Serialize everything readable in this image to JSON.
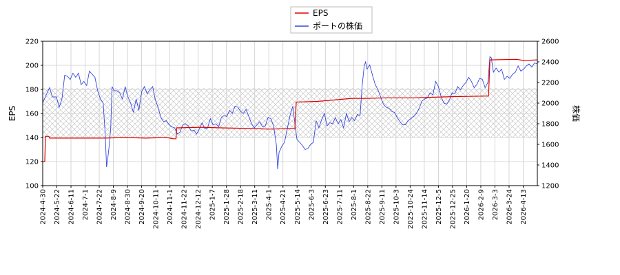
{
  "chart_data": {
    "type": "line",
    "legend": {
      "placement": "top-center",
      "entries": [
        "EPS",
        "ポートの株価"
      ]
    },
    "xlabel": "",
    "ylabel_left": "EPS",
    "ylabel_right": "株価",
    "x_ticks": [
      "2024-4-30",
      "2024-5-22",
      "2024-6-11",
      "2024-7-1",
      "2024-7-22",
      "2024-8-9",
      "2024-8-30",
      "2024-9-20",
      "2024-10-11",
      "2024-11-1",
      "2024-11-22",
      "2024-12-12",
      "2025-1-7",
      "2025-1-28",
      "2025-2-18",
      "2025-3-11",
      "2025-4-1",
      "2025-4-21",
      "2025-5-14",
      "2025-6-3",
      "2025-6-23",
      "2025-7-11",
      "2025-8-1",
      "2025-8-22",
      "2025-9-11",
      "2025-10-3",
      "2025-10-24",
      "2025-11-14",
      "2025-12-5",
      "2025-12-25",
      "2026-1-20",
      "2026-2-9",
      "2026-3-3",
      "2026-3-24",
      "2026-4-13"
    ],
    "y_left": {
      "min": 100,
      "max": 220,
      "ticks": [
        100,
        120,
        140,
        160,
        180,
        200,
        220
      ]
    },
    "y_right": {
      "min": 1200,
      "max": 2600,
      "ticks": [
        1200,
        1400,
        1600,
        1800,
        2000,
        2200,
        2400,
        2600
      ]
    },
    "grid": true,
    "hatched_band": {
      "axis": "left",
      "from": 140,
      "to": 181
    },
    "colors": {
      "eps": "#dd0000",
      "price": "#3344dd",
      "grid": "#cccccc",
      "hatch": "#bbbbbb"
    },
    "series": [
      {
        "name": "EPS",
        "axis": "left",
        "points": [
          [
            0,
            120
          ],
          [
            3,
            120
          ],
          [
            4,
            141
          ],
          [
            9,
            141
          ],
          [
            10,
            139.5
          ],
          [
            90,
            139.5
          ],
          [
            120,
            140
          ],
          [
            150,
            139.5
          ],
          [
            180,
            140
          ],
          [
            190,
            139
          ],
          [
            194,
            139
          ],
          [
            195,
            148
          ],
          [
            230,
            148.5
          ],
          [
            260,
            148
          ],
          [
            300,
            147.5
          ],
          [
            330,
            147
          ],
          [
            367,
            147.5
          ],
          [
            369,
            169.5
          ],
          [
            400,
            170
          ],
          [
            430,
            171.5
          ],
          [
            450,
            172.5
          ],
          [
            470,
            172.5
          ],
          [
            500,
            173
          ],
          [
            540,
            173
          ],
          [
            570,
            173.5
          ],
          [
            600,
            174
          ],
          [
            620,
            174.2
          ],
          [
            649,
            174.5
          ],
          [
            651,
            204.5
          ],
          [
            690,
            205
          ],
          [
            700,
            204
          ],
          [
            720,
            204.5
          ]
        ]
      },
      {
        "name": "ポートの株価",
        "axis": "right",
        "points": [
          [
            0,
            2000
          ],
          [
            5,
            2080
          ],
          [
            10,
            2150
          ],
          [
            14,
            2060
          ],
          [
            20,
            2060
          ],
          [
            24,
            1960
          ],
          [
            28,
            2040
          ],
          [
            32,
            2270
          ],
          [
            36,
            2260
          ],
          [
            40,
            2230
          ],
          [
            44,
            2290
          ],
          [
            48,
            2250
          ],
          [
            52,
            2290
          ],
          [
            56,
            2180
          ],
          [
            60,
            2210
          ],
          [
            64,
            2170
          ],
          [
            68,
            2310
          ],
          [
            72,
            2280
          ],
          [
            76,
            2250
          ],
          [
            80,
            2120
          ],
          [
            84,
            2040
          ],
          [
            88,
            2000
          ],
          [
            91,
            1700
          ],
          [
            93,
            1380
          ],
          [
            95,
            1480
          ],
          [
            97,
            1600
          ],
          [
            99,
            1760
          ],
          [
            101,
            2160
          ],
          [
            104,
            2120
          ],
          [
            108,
            2120
          ],
          [
            112,
            2100
          ],
          [
            116,
            2040
          ],
          [
            120,
            2160
          ],
          [
            124,
            2060
          ],
          [
            128,
            2000
          ],
          [
            132,
            1910
          ],
          [
            136,
            2040
          ],
          [
            140,
            1930
          ],
          [
            144,
            2110
          ],
          [
            148,
            2160
          ],
          [
            152,
            2090
          ],
          [
            156,
            2130
          ],
          [
            160,
            2160
          ],
          [
            164,
            2030
          ],
          [
            168,
            1960
          ],
          [
            172,
            1860
          ],
          [
            176,
            1820
          ],
          [
            180,
            1830
          ],
          [
            184,
            1790
          ],
          [
            188,
            1770
          ],
          [
            192,
            1760
          ],
          [
            196,
            1700
          ],
          [
            200,
            1720
          ],
          [
            204,
            1790
          ],
          [
            208,
            1800
          ],
          [
            212,
            1780
          ],
          [
            216,
            1730
          ],
          [
            220,
            1740
          ],
          [
            224,
            1700
          ],
          [
            228,
            1750
          ],
          [
            232,
            1810
          ],
          [
            236,
            1750
          ],
          [
            240,
            1760
          ],
          [
            244,
            1850
          ],
          [
            248,
            1790
          ],
          [
            252,
            1800
          ],
          [
            256,
            1770
          ],
          [
            260,
            1860
          ],
          [
            264,
            1880
          ],
          [
            268,
            1870
          ],
          [
            272,
            1930
          ],
          [
            276,
            1900
          ],
          [
            280,
            1970
          ],
          [
            284,
            1960
          ],
          [
            288,
            1920
          ],
          [
            292,
            1900
          ],
          [
            296,
            1940
          ],
          [
            300,
            1870
          ],
          [
            304,
            1800
          ],
          [
            308,
            1760
          ],
          [
            312,
            1790
          ],
          [
            316,
            1820
          ],
          [
            320,
            1770
          ],
          [
            324,
            1780
          ],
          [
            328,
            1860
          ],
          [
            332,
            1850
          ],
          [
            336,
            1780
          ],
          [
            340,
            1600
          ],
          [
            342,
            1360
          ],
          [
            344,
            1520
          ],
          [
            348,
            1580
          ],
          [
            352,
            1620
          ],
          [
            356,
            1750
          ],
          [
            360,
            1880
          ],
          [
            364,
            1970
          ],
          [
            368,
            1750
          ],
          [
            370,
            1650
          ],
          [
            374,
            1620
          ],
          [
            378,
            1590
          ],
          [
            382,
            1550
          ],
          [
            386,
            1560
          ],
          [
            390,
            1600
          ],
          [
            394,
            1620
          ],
          [
            398,
            1830
          ],
          [
            402,
            1760
          ],
          [
            406,
            1840
          ],
          [
            410,
            1900
          ],
          [
            414,
            1780
          ],
          [
            418,
            1810
          ],
          [
            422,
            1800
          ],
          [
            426,
            1860
          ],
          [
            430,
            1800
          ],
          [
            434,
            1840
          ],
          [
            438,
            1760
          ],
          [
            442,
            1900
          ],
          [
            446,
            1820
          ],
          [
            450,
            1860
          ],
          [
            454,
            1830
          ],
          [
            458,
            1890
          ],
          [
            462,
            1880
          ],
          [
            465,
            2170
          ],
          [
            468,
            2360
          ],
          [
            470,
            2400
          ],
          [
            472,
            2330
          ],
          [
            476,
            2370
          ],
          [
            480,
            2270
          ],
          [
            484,
            2180
          ],
          [
            488,
            2130
          ],
          [
            492,
            2060
          ],
          [
            496,
            1990
          ],
          [
            500,
            1960
          ],
          [
            504,
            1950
          ],
          [
            508,
            1920
          ],
          [
            512,
            1910
          ],
          [
            516,
            1860
          ],
          [
            520,
            1820
          ],
          [
            524,
            1790
          ],
          [
            528,
            1790
          ],
          [
            532,
            1830
          ],
          [
            536,
            1850
          ],
          [
            540,
            1870
          ],
          [
            544,
            1900
          ],
          [
            548,
            1950
          ],
          [
            552,
            2020
          ],
          [
            556,
            2040
          ],
          [
            560,
            2050
          ],
          [
            564,
            2100
          ],
          [
            568,
            2080
          ],
          [
            572,
            2210
          ],
          [
            576,
            2160
          ],
          [
            580,
            2060
          ],
          [
            584,
            2000
          ],
          [
            588,
            1990
          ],
          [
            592,
            2030
          ],
          [
            596,
            2100
          ],
          [
            600,
            2090
          ],
          [
            604,
            2160
          ],
          [
            608,
            2130
          ],
          [
            612,
            2170
          ],
          [
            616,
            2200
          ],
          [
            620,
            2250
          ],
          [
            624,
            2210
          ],
          [
            628,
            2150
          ],
          [
            632,
            2180
          ],
          [
            636,
            2240
          ],
          [
            640,
            2230
          ],
          [
            644,
            2150
          ],
          [
            648,
            2200
          ],
          [
            651,
            2450
          ],
          [
            653,
            2440
          ],
          [
            656,
            2300
          ],
          [
            660,
            2340
          ],
          [
            664,
            2300
          ],
          [
            668,
            2330
          ],
          [
            672,
            2230
          ],
          [
            676,
            2260
          ],
          [
            680,
            2240
          ],
          [
            684,
            2280
          ],
          [
            688,
            2300
          ],
          [
            692,
            2360
          ],
          [
            696,
            2310
          ],
          [
            700,
            2330
          ],
          [
            704,
            2360
          ],
          [
            708,
            2380
          ],
          [
            712,
            2350
          ],
          [
            716,
            2390
          ],
          [
            720,
            2380
          ]
        ]
      }
    ]
  }
}
